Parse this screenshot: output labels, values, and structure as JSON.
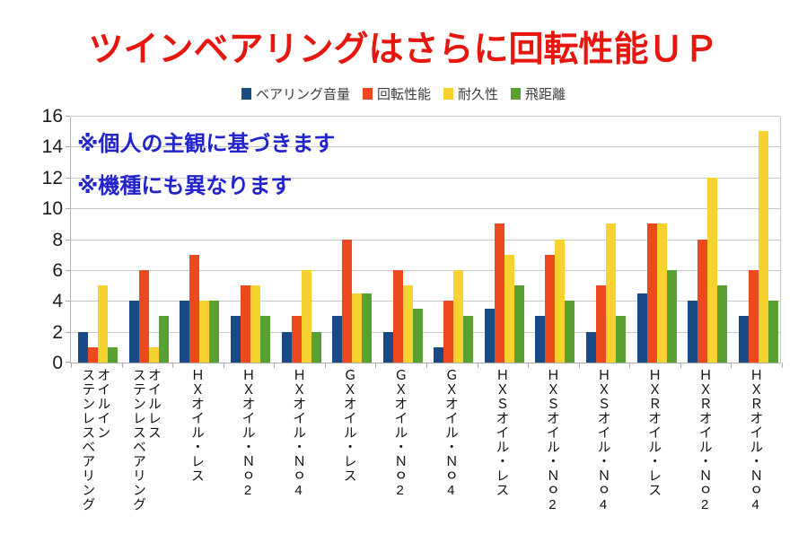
{
  "title": "ツインベアリングはさらに回転性能ＵＰ",
  "annotations": [
    "※個人の主観に基づきます",
    "※機種にも異なります"
  ],
  "colors": {
    "title": "#e5170f",
    "annotation": "#2323cb",
    "grid": "#c9c9c9",
    "axis": "#a9a9a9",
    "tick_text": "#1c1c1c"
  },
  "chart_data": {
    "type": "bar",
    "title": "ツインベアリングはさらに回転性能ＵＰ",
    "categories": [
      "オイルイン\nステンレスベアリング",
      "オイルレス\nステンレスベアリング",
      "ＨＸオイル・レス",
      "ＨＸオイル・Ｎｏ2",
      "ＨＸオイル・Ｎｏ4",
      "ＧＸオイル・レス",
      "ＧＸオイル・Ｎｏ2",
      "ＧＸオイル・Ｎｏ4",
      "ＨＸＳオイル・レス",
      "ＨＸＳオイル・Ｎｏ2",
      "ＨＸＳオイル・Ｎｏ4",
      "ＨＸＲオイル・レス",
      "ＨＸＲオイル・Ｎｏ2",
      "ＨＸＲオイル・Ｎｏ4"
    ],
    "series": [
      {
        "name": "ベアリング音量",
        "color": "#1a4a85",
        "values": [
          2,
          4,
          4,
          3,
          2,
          3,
          2,
          1,
          3.5,
          3,
          2,
          4.5,
          4,
          3
        ]
      },
      {
        "name": "回転性能",
        "color": "#ec4a1e",
        "values": [
          1,
          6,
          7,
          5,
          3,
          8,
          6,
          4,
          9,
          7,
          5,
          9,
          8,
          6
        ]
      },
      {
        "name": "耐久性",
        "color": "#f8d231",
        "values": [
          5,
          1,
          4,
          5,
          6,
          4.5,
          5,
          6,
          7,
          8,
          9,
          9,
          12,
          15
        ]
      },
      {
        "name": "飛距離",
        "color": "#58a032",
        "values": [
          1,
          3,
          4,
          3,
          2,
          4.5,
          3.5,
          3,
          5,
          4,
          3,
          6,
          5,
          4
        ]
      }
    ],
    "xlabel": "",
    "ylabel": "",
    "ylim": [
      0,
      16
    ],
    "ytick_step": 2,
    "grid": "horizontal",
    "legend_position": "top"
  }
}
